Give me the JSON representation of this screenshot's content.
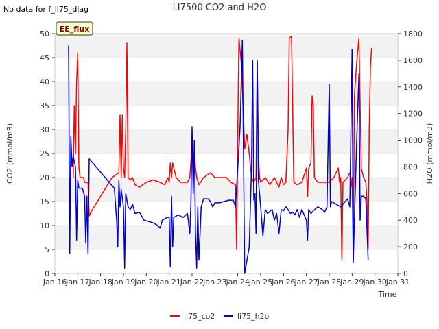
{
  "chart_data": {
    "type": "line",
    "title": "LI7500 CO2 and H2O",
    "note": "No data for f_li75_diag",
    "badge": "EE_flux",
    "xlabel": "Time",
    "ylabel_left": "CO2 (mmol/m3)",
    "ylabel_right": "H2O (mmol/m3)",
    "xlim": [
      16,
      31
    ],
    "ylim_left": [
      0,
      50
    ],
    "ylim_right": [
      0,
      1800
    ],
    "x_ticks": [
      {
        "v": 16,
        "label": "Jan 16"
      },
      {
        "v": 17,
        "label": "Jan 17"
      },
      {
        "v": 18,
        "label": "Jan 18"
      },
      {
        "v": 19,
        "label": "Jan 19"
      },
      {
        "v": 20,
        "label": "Jan 20"
      },
      {
        "v": 21,
        "label": "Jan 21"
      },
      {
        "v": 22,
        "label": "Jan 22"
      },
      {
        "v": 23,
        "label": "Jan 23"
      },
      {
        "v": 24,
        "label": "Jan 24"
      },
      {
        "v": 25,
        "label": "Jan 25"
      },
      {
        "v": 26,
        "label": "Jan 26"
      },
      {
        "v": 27,
        "label": "Jan 27"
      },
      {
        "v": 28,
        "label": "Jan 28"
      },
      {
        "v": 29,
        "label": "Jan 29"
      },
      {
        "v": 30,
        "label": "Jan 30"
      },
      {
        "v": 31,
        "label": "Jan 31"
      }
    ],
    "y_ticks_left": [
      0,
      5,
      10,
      15,
      20,
      25,
      30,
      35,
      40,
      45,
      50
    ],
    "y_ticks_right": [
      0,
      200,
      400,
      600,
      800,
      1000,
      1200,
      1400,
      1600,
      1800
    ],
    "series": [
      {
        "name": "li75_co2",
        "color": "#ff0000",
        "axis": "left",
        "points": [
          [
            16.8,
            20
          ],
          [
            16.85,
            35
          ],
          [
            16.9,
            25
          ],
          [
            16.95,
            40
          ],
          [
            17.0,
            46
          ],
          [
            17.05,
            22
          ],
          [
            17.1,
            20
          ],
          [
            17.25,
            20
          ],
          [
            17.3,
            19
          ],
          [
            17.45,
            19
          ],
          [
            17.5,
            12
          ],
          [
            17.6,
            13
          ],
          [
            18.5,
            20
          ],
          [
            18.8,
            21
          ],
          [
            18.85,
            33
          ],
          [
            18.9,
            20
          ],
          [
            18.95,
            33
          ],
          [
            19.0,
            22
          ],
          [
            19.05,
            20
          ],
          [
            19.1,
            30
          ],
          [
            19.15,
            48
          ],
          [
            19.2,
            20
          ],
          [
            19.3,
            19.5
          ],
          [
            19.4,
            20
          ],
          [
            19.5,
            18.5
          ],
          [
            19.7,
            18
          ],
          [
            20.0,
            19
          ],
          [
            20.3,
            19.5
          ],
          [
            20.6,
            19
          ],
          [
            20.8,
            18.5
          ],
          [
            20.95,
            20
          ],
          [
            21.0,
            19
          ],
          [
            21.05,
            23
          ],
          [
            21.1,
            20
          ],
          [
            21.15,
            23
          ],
          [
            21.2,
            22
          ],
          [
            21.3,
            20
          ],
          [
            21.5,
            19
          ],
          [
            21.8,
            19
          ],
          [
            21.9,
            20
          ],
          [
            22.0,
            27
          ],
          [
            22.05,
            19
          ],
          [
            22.1,
            25
          ],
          [
            22.15,
            22
          ],
          [
            22.2,
            20
          ],
          [
            22.3,
            18.5
          ],
          [
            22.5,
            20
          ],
          [
            22.8,
            21
          ],
          [
            23.0,
            20
          ],
          [
            23.2,
            20
          ],
          [
            23.5,
            20
          ],
          [
            23.7,
            19
          ],
          [
            23.9,
            18.5
          ],
          [
            23.95,
            5
          ],
          [
            24.0,
            30
          ],
          [
            24.05,
            49
          ],
          [
            24.15,
            44
          ],
          [
            24.3,
            26
          ],
          [
            24.4,
            29
          ],
          [
            24.5,
            25
          ],
          [
            24.6,
            20
          ],
          [
            24.7,
            19
          ],
          [
            24.8,
            20
          ],
          [
            24.85,
            44
          ],
          [
            24.9,
            25
          ],
          [
            24.95,
            20
          ],
          [
            25.0,
            19
          ],
          [
            25.2,
            20
          ],
          [
            25.4,
            18.5
          ],
          [
            25.6,
            20
          ],
          [
            25.8,
            18
          ],
          [
            25.9,
            20
          ],
          [
            26.0,
            18.5
          ],
          [
            26.1,
            19
          ],
          [
            26.2,
            30
          ],
          [
            26.25,
            49
          ],
          [
            26.35,
            49.5
          ],
          [
            26.45,
            19
          ],
          [
            26.6,
            18.5
          ],
          [
            26.8,
            19
          ],
          [
            27.0,
            22
          ],
          [
            27.05,
            16
          ],
          [
            27.1,
            22
          ],
          [
            27.2,
            23
          ],
          [
            27.25,
            37
          ],
          [
            27.3,
            35
          ],
          [
            27.35,
            20
          ],
          [
            27.5,
            19
          ],
          [
            27.8,
            19
          ],
          [
            28.0,
            19
          ],
          [
            28.2,
            20
          ],
          [
            28.4,
            22
          ],
          [
            28.45,
            19
          ],
          [
            28.5,
            20
          ],
          [
            28.55,
            3
          ],
          [
            28.6,
            19
          ],
          [
            28.8,
            20
          ],
          [
            28.9,
            21
          ],
          [
            28.95,
            18
          ],
          [
            29.0,
            20
          ],
          [
            29.05,
            3
          ],
          [
            29.1,
            37
          ],
          [
            29.2,
            44
          ],
          [
            29.3,
            49
          ],
          [
            29.4,
            22
          ],
          [
            29.5,
            20
          ],
          [
            29.6,
            19
          ],
          [
            29.65,
            15
          ],
          [
            29.7,
            5
          ],
          [
            29.75,
            30
          ],
          [
            29.8,
            43
          ],
          [
            29.85,
            47
          ]
        ]
      },
      {
        "name": "li75_h2o",
        "color": "#0000cc",
        "axis": "right",
        "points": [
          [
            16.6,
            1710
          ],
          [
            16.65,
            150
          ],
          [
            16.7,
            1030
          ],
          [
            16.75,
            800
          ],
          [
            16.8,
            880
          ],
          [
            16.9,
            800
          ],
          [
            16.95,
            250
          ],
          [
            17.0,
            700
          ],
          [
            17.05,
            640
          ],
          [
            17.2,
            640
          ],
          [
            17.3,
            580
          ],
          [
            17.35,
            230
          ],
          [
            17.4,
            580
          ],
          [
            17.45,
            150
          ],
          [
            17.5,
            860
          ],
          [
            18.6,
            640
          ],
          [
            18.7,
            400
          ],
          [
            18.75,
            200
          ],
          [
            18.8,
            700
          ],
          [
            18.85,
            500
          ],
          [
            18.9,
            630
          ],
          [
            19.0,
            500
          ],
          [
            19.05,
            40
          ],
          [
            19.1,
            600
          ],
          [
            19.2,
            500
          ],
          [
            19.3,
            480
          ],
          [
            19.4,
            520
          ],
          [
            19.5,
            450
          ],
          [
            19.7,
            460
          ],
          [
            19.9,
            400
          ],
          [
            20.1,
            390
          ],
          [
            20.3,
            380
          ],
          [
            20.5,
            360
          ],
          [
            20.6,
            340
          ],
          [
            20.7,
            400
          ],
          [
            20.9,
            420
          ],
          [
            21.0,
            420
          ],
          [
            21.05,
            50
          ],
          [
            21.1,
            580
          ],
          [
            21.15,
            200
          ],
          [
            21.2,
            420
          ],
          [
            21.4,
            440
          ],
          [
            21.6,
            420
          ],
          [
            21.8,
            450
          ],
          [
            21.9,
            300
          ],
          [
            21.95,
            520
          ],
          [
            22.0,
            1100
          ],
          [
            22.05,
            600
          ],
          [
            22.1,
            1000
          ],
          [
            22.15,
            300
          ],
          [
            22.2,
            40
          ],
          [
            22.25,
            500
          ],
          [
            22.3,
            100
          ],
          [
            22.4,
            500
          ],
          [
            22.5,
            560
          ],
          [
            22.7,
            560
          ],
          [
            22.8,
            540
          ],
          [
            22.9,
            500
          ],
          [
            23.0,
            530
          ],
          [
            23.2,
            530
          ],
          [
            23.4,
            540
          ],
          [
            23.6,
            550
          ],
          [
            23.8,
            550
          ],
          [
            23.9,
            500
          ],
          [
            24.0,
            800
          ],
          [
            24.1,
            1100
          ],
          [
            24.2,
            1750
          ],
          [
            24.3,
            0
          ],
          [
            24.4,
            100
          ],
          [
            24.5,
            200
          ],
          [
            24.6,
            800
          ],
          [
            24.65,
            1600
          ],
          [
            24.7,
            550
          ],
          [
            24.75,
            600
          ],
          [
            24.8,
            300
          ],
          [
            24.85,
            1600
          ],
          [
            24.9,
            700
          ],
          [
            25.0,
            500
          ],
          [
            25.1,
            280
          ],
          [
            25.2,
            480
          ],
          [
            25.3,
            450
          ],
          [
            25.5,
            480
          ],
          [
            25.6,
            400
          ],
          [
            25.7,
            450
          ],
          [
            25.8,
            300
          ],
          [
            25.9,
            480
          ],
          [
            26.0,
            470
          ],
          [
            26.1,
            500
          ],
          [
            26.2,
            480
          ],
          [
            26.3,
            450
          ],
          [
            26.4,
            460
          ],
          [
            26.5,
            440
          ],
          [
            26.6,
            480
          ],
          [
            26.7,
            420
          ],
          [
            26.8,
            480
          ],
          [
            26.85,
            460
          ],
          [
            26.9,
            440
          ],
          [
            27.0,
            400
          ],
          [
            27.05,
            250
          ],
          [
            27.1,
            480
          ],
          [
            27.2,
            450
          ],
          [
            27.3,
            470
          ],
          [
            27.5,
            500
          ],
          [
            27.7,
            480
          ],
          [
            27.8,
            460
          ],
          [
            27.9,
            500
          ],
          [
            28.0,
            1420
          ],
          [
            28.05,
            500
          ],
          [
            28.1,
            540
          ],
          [
            28.3,
            520
          ],
          [
            28.5,
            500
          ],
          [
            28.7,
            540
          ],
          [
            28.8,
            560
          ],
          [
            28.9,
            500
          ],
          [
            29.0,
            1680
          ],
          [
            29.05,
            80
          ],
          [
            29.1,
            400
          ],
          [
            29.2,
            1000
          ],
          [
            29.3,
            1500
          ],
          [
            29.35,
            400
          ],
          [
            29.4,
            580
          ],
          [
            29.5,
            580
          ],
          [
            29.6,
            560
          ],
          [
            29.7,
            100
          ]
        ]
      }
    ]
  }
}
